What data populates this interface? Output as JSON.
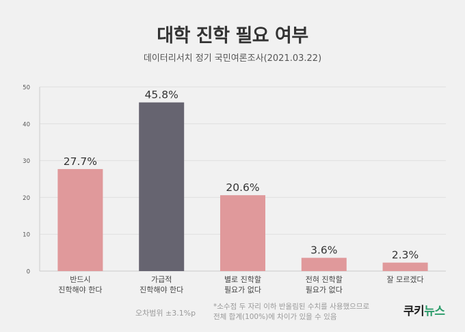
{
  "title": "대학 진학 필요 여부",
  "subtitle": "데이터리서치 정기 국민여론조사(2021.03.22)",
  "footnotes": {
    "margin": "오차범위 ±3.1%p",
    "line1": "*소수점 두 자리 이하 반올림된 수치를 사용했으므로",
    "line2": "전체 합계(100%)에 차이가 있을 수 있음"
  },
  "logo": {
    "part1": "쿠키",
    "part2": "뉴스"
  },
  "colors": {
    "pink": "#e0999b",
    "dark": "#666470",
    "axis": "#cccccc",
    "grid": "#e0e0e0"
  },
  "chart_data": {
    "type": "bar",
    "title": "대학 진학 필요 여부",
    "subtitle": "데이터리서치 정기 국민여론조사(2021.03.22)",
    "ylim": [
      0,
      50
    ],
    "yticks": [
      0,
      10,
      20,
      30,
      40,
      50
    ],
    "grid": true,
    "categories": [
      [
        "반드시",
        "진학해야 한다"
      ],
      [
        "가급적",
        "진학해야 한다"
      ],
      [
        "별로 진학할",
        "필요가 없다"
      ],
      [
        "전혀 진학할",
        "필요가 없다"
      ],
      [
        "잘 모르겠다"
      ]
    ],
    "values": [
      27.7,
      45.8,
      20.6,
      3.6,
      2.3
    ],
    "value_labels": [
      "27.7%",
      "45.8%",
      "20.6%",
      "3.6%",
      "2.3%"
    ],
    "bar_colors": [
      "#e0999b",
      "#666470",
      "#e0999b",
      "#e0999b",
      "#e0999b"
    ]
  }
}
